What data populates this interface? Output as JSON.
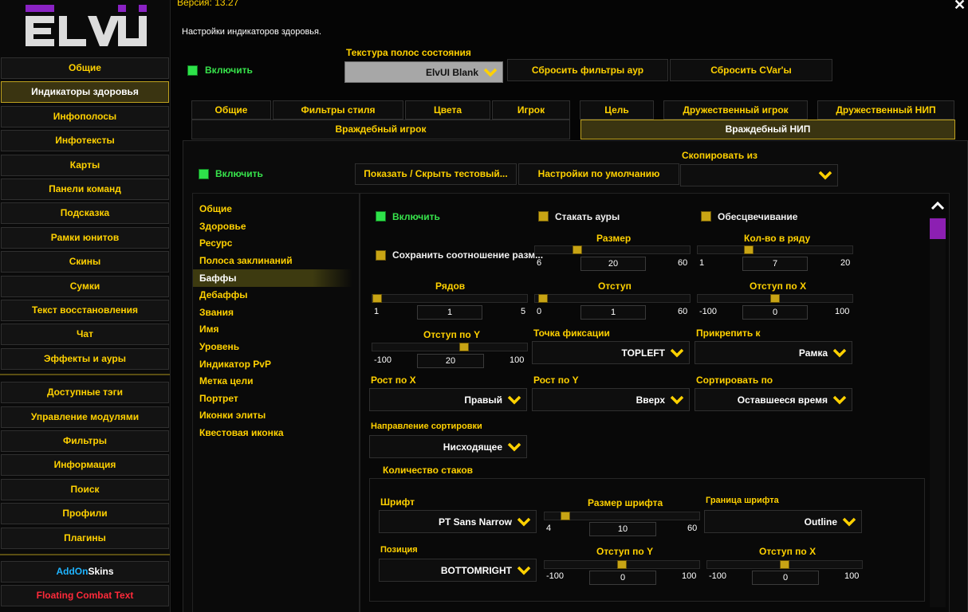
{
  "app": {
    "logo_text": "ELVUI",
    "version": "Версия: 13.27",
    "description": "Настройки индикаторов здоровья."
  },
  "sidebar": {
    "items": [
      {
        "label": "Общие"
      },
      {
        "label": "Индикаторы здоровья",
        "active": true
      },
      {
        "label": "Инфополосы"
      },
      {
        "label": "Инфотексты"
      },
      {
        "label": "Карты"
      },
      {
        "label": "Панели команд"
      },
      {
        "label": "Подсказка"
      },
      {
        "label": "Рамки юнитов"
      },
      {
        "label": "Скины"
      },
      {
        "label": "Сумки"
      },
      {
        "label": "Текст восстановления"
      },
      {
        "label": "Чат"
      },
      {
        "label": "Эффекты и ауры"
      }
    ],
    "items2": [
      {
        "label": "Доступные тэги"
      },
      {
        "label": "Управление модулями"
      },
      {
        "label": "Фильтры"
      },
      {
        "label": "Информация"
      },
      {
        "label": "Поиск"
      },
      {
        "label": "Профили"
      },
      {
        "label": "Плагины"
      }
    ],
    "addon_skins_part1": "AddOn",
    "addon_skins_part2": "Skins",
    "floating_combat_text": "Floating Combat Text"
  },
  "top": {
    "enable_label": "Включить",
    "texture_label": "Текстура полос состояния",
    "texture_value": "ElvUI Blank",
    "reset_aura_filters": "Сбросить фильтры аур",
    "reset_cvars": "Сбросить CVar'ы"
  },
  "tabs_row1": [
    "Общие",
    "Фильтры стиля",
    "Цвета",
    "Игрок",
    "Цель",
    "Дружественный игрок",
    "Дружественный НИП"
  ],
  "tabs_row2": [
    "Враждебный игрок",
    "Враждебный НИП"
  ],
  "unit": {
    "enable_label": "Включить",
    "show_hide_test": "Показать / Скрыть тестовый...",
    "defaults": "Настройки по умолчанию",
    "copy_from_label": "Скопировать из",
    "copy_from_value": ""
  },
  "left_list": [
    "Общие",
    "Здоровье",
    "Ресурс",
    "Полоса заклинаний",
    "Баффы",
    "Дебаффы",
    "Звания",
    "Имя",
    "Уровень",
    "Индикатор PvP",
    "Метка цели",
    "Портрет",
    "Иконки элиты",
    "Квестовая иконка"
  ],
  "left_list_active": "Баффы",
  "buffs": {
    "enable_label": "Включить",
    "stack_auras_label": "Стакать ауры",
    "desaturate_label": "Обесцвечивание",
    "keep_ratio_label": "Сохранить соотношение разм...",
    "size": {
      "label": "Размер",
      "min": "6",
      "max": "60",
      "value": "20",
      "fraction": 0.26
    },
    "per_row": {
      "label": "Кол-во в ряду",
      "min": "1",
      "max": "20",
      "value": "7",
      "fraction": 0.32
    },
    "rows": {
      "label": "Рядов",
      "min": "1",
      "max": "5",
      "value": "1",
      "fraction": 0.0
    },
    "spacing": {
      "label": "Отступ",
      "min": "0",
      "max": "60",
      "value": "1",
      "fraction": 0.02
    },
    "x_offset": {
      "label": "Отступ по X",
      "min": "-100",
      "max": "100",
      "value": "0",
      "fraction": 0.5
    },
    "y_offset": {
      "label": "Отступ по Y",
      "min": "-100",
      "max": "100",
      "value": "20",
      "fraction": 0.6
    },
    "anchor_point": {
      "label": "Точка фиксации",
      "value": "TOPLEFT"
    },
    "attach_to": {
      "label": "Прикрепить к",
      "value": "Рамка"
    },
    "growth_x": {
      "label": "Рост по X",
      "value": "Правый"
    },
    "growth_y": {
      "label": "Рост по Y",
      "value": "Вверх"
    },
    "sort_by": {
      "label": "Сортировать по",
      "value": "Оставшееся время"
    },
    "sort_direction": {
      "label": "Направление сортировки",
      "value": "Нисходящее"
    }
  },
  "stack_count": {
    "title": "Количество стаков",
    "font": {
      "label": "Шрифт",
      "value": "PT Sans Narrow"
    },
    "font_size": {
      "label": "Размер шрифта",
      "min": "4",
      "max": "60",
      "value": "10",
      "fraction": 0.11
    },
    "font_outline": {
      "label": "Граница шрифта",
      "value": "Outline"
    },
    "position": {
      "label": "Позиция",
      "value": "BOTTOMRIGHT"
    },
    "y_offset": {
      "label": "Отступ по Y",
      "min": "-100",
      "max": "100",
      "value": "0",
      "fraction": 0.5
    },
    "x_offset": {
      "label": "Отступ по X",
      "min": "-100",
      "max": "100",
      "value": "0",
      "fraction": 0.5
    }
  },
  "colors": {
    "accent": "#ffd100",
    "active_bg": "#3a3411",
    "enable_green": "#37e34b",
    "scroll_thumb": "#8c1fb2",
    "addon_blue": "#1fb4ff",
    "fct_red": "#ff2a3a"
  }
}
